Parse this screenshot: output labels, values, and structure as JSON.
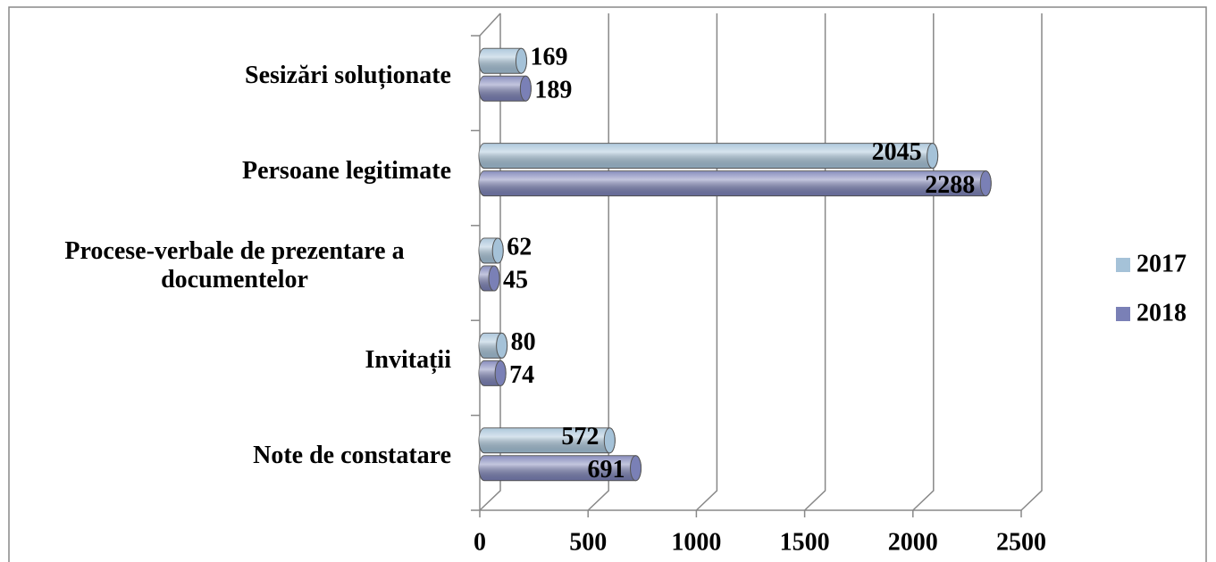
{
  "chart_data": {
    "type": "bar",
    "orientation": "horizontal",
    "categories": [
      "Note de constatare",
      "Invitații",
      "Procese-verbale de prezentare a documentelor",
      "Persoane legitimate",
      "Sesizări soluționate"
    ],
    "series": [
      {
        "name": "2017",
        "color": "#a5c2d8",
        "values": [
          572,
          80,
          62,
          2045,
          169
        ]
      },
      {
        "name": "2018",
        "color": "#7a80b6",
        "values": [
          691,
          74,
          45,
          2288,
          189
        ]
      }
    ],
    "xlim": [
      0,
      2500
    ],
    "xticks": [
      0,
      500,
      1000,
      1500,
      2000,
      2500
    ],
    "grid": true,
    "legend": "right"
  }
}
